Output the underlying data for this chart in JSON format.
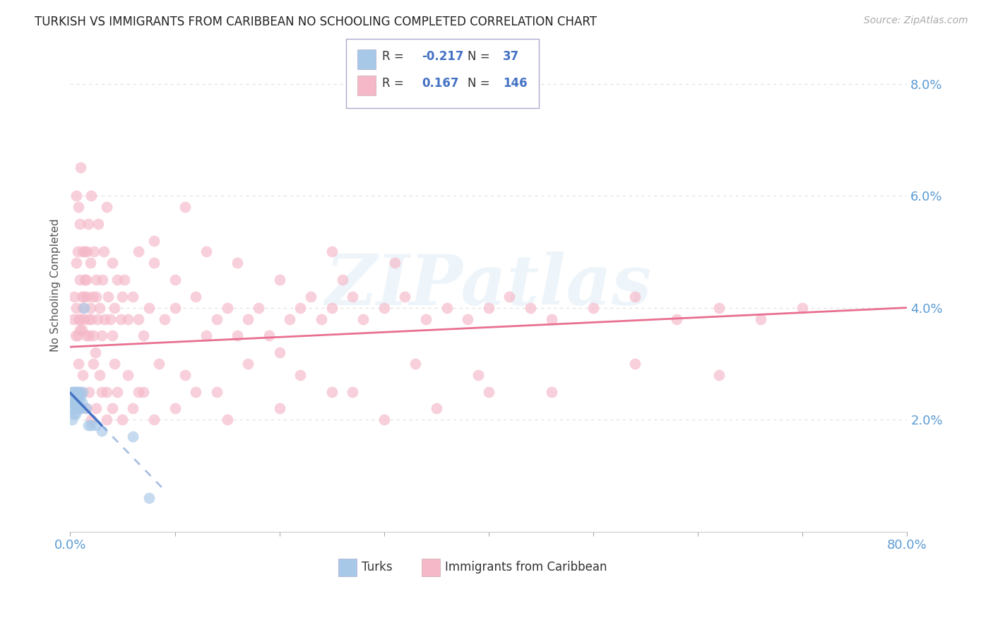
{
  "title": "TURKISH VS IMMIGRANTS FROM CARIBBEAN NO SCHOOLING COMPLETED CORRELATION CHART",
  "source": "Source: ZipAtlas.com",
  "ylabel": "No Schooling Completed",
  "xlim": [
    0.0,
    0.8
  ],
  "ylim": [
    0.0,
    0.088
  ],
  "xtick_positions": [
    0.0,
    0.1,
    0.2,
    0.3,
    0.4,
    0.5,
    0.6,
    0.7,
    0.8
  ],
  "xtick_labels": [
    "0.0%",
    "",
    "",
    "",
    "",
    "",
    "",
    "",
    "80.0%"
  ],
  "ytick_positions": [
    0.02,
    0.04,
    0.06,
    0.08
  ],
  "ytick_labels": [
    "2.0%",
    "4.0%",
    "6.0%",
    "8.0%"
  ],
  "series1_label": "Turks",
  "series1_color": "#a8c8e8",
  "series1_line_color": "#4472c4",
  "series1_R": -0.217,
  "series1_N": 37,
  "series2_label": "Immigrants from Caribbean",
  "series2_color": "#f5b8c8",
  "series2_line_color": "#e87090",
  "series2_R": 0.167,
  "series2_N": 146,
  "watermark": "ZIPatlas",
  "background_color": "#ffffff",
  "grid_color": "#e0e0e0",
  "axis_color": "#5b9bd5",
  "title_fontsize": 12,
  "legend_box_color": "#ddeeff",
  "turks_x": [
    0.001,
    0.001,
    0.002,
    0.002,
    0.003,
    0.003,
    0.003,
    0.004,
    0.004,
    0.004,
    0.005,
    0.005,
    0.005,
    0.005,
    0.006,
    0.006,
    0.006,
    0.007,
    0.007,
    0.007,
    0.008,
    0.008,
    0.008,
    0.009,
    0.009,
    0.01,
    0.01,
    0.011,
    0.012,
    0.013,
    0.015,
    0.017,
    0.02,
    0.025,
    0.03,
    0.06,
    0.075
  ],
  "turks_y": [
    0.025,
    0.022,
    0.024,
    0.02,
    0.025,
    0.023,
    0.022,
    0.025,
    0.023,
    0.021,
    0.025,
    0.024,
    0.023,
    0.021,
    0.025,
    0.024,
    0.022,
    0.025,
    0.024,
    0.022,
    0.024,
    0.023,
    0.022,
    0.025,
    0.022,
    0.024,
    0.022,
    0.023,
    0.025,
    0.04,
    0.022,
    0.019,
    0.019,
    0.019,
    0.018,
    0.017,
    0.006
  ],
  "carib_x": [
    0.003,
    0.004,
    0.005,
    0.006,
    0.006,
    0.007,
    0.007,
    0.008,
    0.008,
    0.009,
    0.009,
    0.01,
    0.01,
    0.011,
    0.011,
    0.012,
    0.012,
    0.013,
    0.013,
    0.014,
    0.015,
    0.015,
    0.016,
    0.016,
    0.017,
    0.017,
    0.018,
    0.019,
    0.02,
    0.02,
    0.021,
    0.022,
    0.023,
    0.024,
    0.025,
    0.026,
    0.027,
    0.028,
    0.03,
    0.031,
    0.033,
    0.035,
    0.036,
    0.038,
    0.04,
    0.042,
    0.045,
    0.048,
    0.05,
    0.055,
    0.06,
    0.065,
    0.07,
    0.075,
    0.08,
    0.09,
    0.1,
    0.11,
    0.12,
    0.13,
    0.14,
    0.15,
    0.16,
    0.17,
    0.18,
    0.19,
    0.2,
    0.21,
    0.22,
    0.23,
    0.24,
    0.25,
    0.26,
    0.27,
    0.28,
    0.3,
    0.32,
    0.34,
    0.36,
    0.38,
    0.4,
    0.42,
    0.44,
    0.46,
    0.5,
    0.54,
    0.58,
    0.62,
    0.66,
    0.7,
    0.01,
    0.015,
    0.02,
    0.025,
    0.03,
    0.035,
    0.04,
    0.045,
    0.05,
    0.06,
    0.07,
    0.08,
    0.1,
    0.12,
    0.15,
    0.2,
    0.25,
    0.3,
    0.35,
    0.4,
    0.008,
    0.012,
    0.018,
    0.022,
    0.028,
    0.035,
    0.042,
    0.055,
    0.065,
    0.085,
    0.11,
    0.14,
    0.17,
    0.22,
    0.27,
    0.33,
    0.39,
    0.46,
    0.54,
    0.62,
    0.006,
    0.009,
    0.014,
    0.019,
    0.025,
    0.032,
    0.04,
    0.052,
    0.065,
    0.08,
    0.1,
    0.13,
    0.16,
    0.2,
    0.25,
    0.31
  ],
  "carib_y": [
    0.038,
    0.042,
    0.035,
    0.04,
    0.06,
    0.035,
    0.05,
    0.038,
    0.058,
    0.036,
    0.055,
    0.038,
    0.065,
    0.036,
    0.042,
    0.04,
    0.05,
    0.042,
    0.038,
    0.045,
    0.045,
    0.035,
    0.042,
    0.05,
    0.038,
    0.055,
    0.035,
    0.04,
    0.038,
    0.06,
    0.042,
    0.035,
    0.05,
    0.032,
    0.042,
    0.038,
    0.055,
    0.04,
    0.035,
    0.045,
    0.038,
    0.058,
    0.042,
    0.038,
    0.035,
    0.04,
    0.045,
    0.038,
    0.042,
    0.038,
    0.042,
    0.038,
    0.035,
    0.04,
    0.052,
    0.038,
    0.04,
    0.058,
    0.042,
    0.035,
    0.038,
    0.04,
    0.035,
    0.038,
    0.04,
    0.035,
    0.032,
    0.038,
    0.04,
    0.042,
    0.038,
    0.04,
    0.045,
    0.042,
    0.038,
    0.04,
    0.042,
    0.038,
    0.04,
    0.038,
    0.04,
    0.042,
    0.04,
    0.038,
    0.04,
    0.042,
    0.038,
    0.04,
    0.038,
    0.04,
    0.025,
    0.022,
    0.02,
    0.022,
    0.025,
    0.02,
    0.022,
    0.025,
    0.02,
    0.022,
    0.025,
    0.02,
    0.022,
    0.025,
    0.02,
    0.022,
    0.025,
    0.02,
    0.022,
    0.025,
    0.03,
    0.028,
    0.025,
    0.03,
    0.028,
    0.025,
    0.03,
    0.028,
    0.025,
    0.03,
    0.028,
    0.025,
    0.03,
    0.028,
    0.025,
    0.03,
    0.028,
    0.025,
    0.03,
    0.028,
    0.048,
    0.045,
    0.05,
    0.048,
    0.045,
    0.05,
    0.048,
    0.045,
    0.05,
    0.048,
    0.045,
    0.05,
    0.048,
    0.045,
    0.05,
    0.048
  ]
}
